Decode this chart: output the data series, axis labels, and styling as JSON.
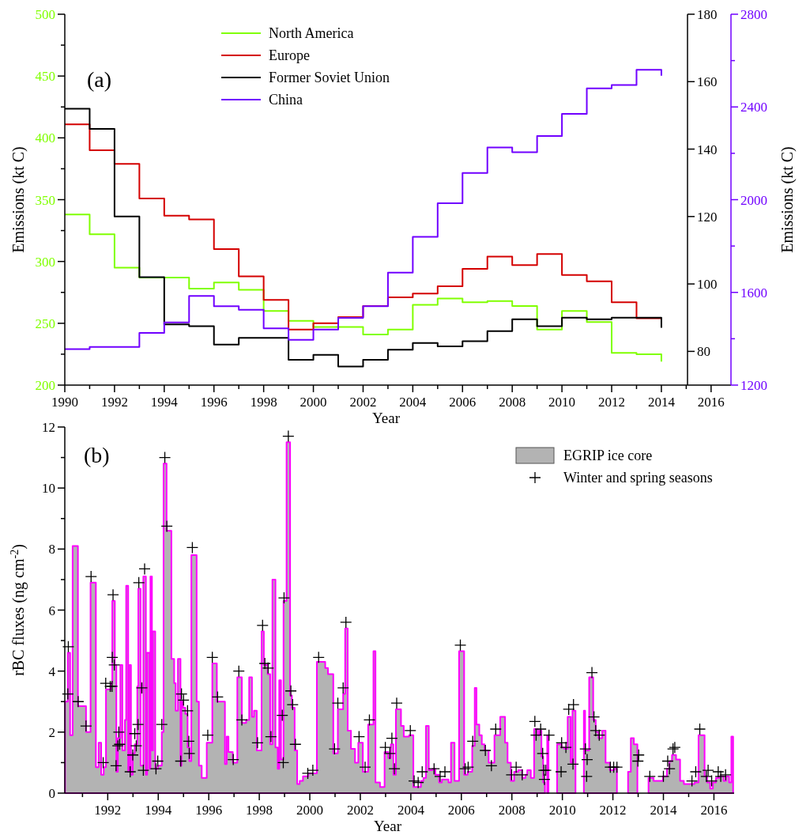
{
  "chart_data": [
    {
      "type": "step",
      "annotations": [
        "(a)"
      ],
      "xlabel": "Year",
      "ylabel": "Emissions (kt C)",
      "y2label": "Emissions (kt C)",
      "legend": "top left",
      "xlim": [
        1990,
        2016.8
      ],
      "xticks": [
        1990,
        {
          "value": 1991,
          "label": null
        },
        1992,
        {
          "value": 1993,
          "label": null
        },
        1994,
        {
          "value": 1995,
          "label": null
        },
        1996,
        {
          "value": 1997,
          "label": null
        },
        1998,
        {
          "value": 1999,
          "label": null
        },
        2000,
        {
          "value": 2001,
          "label": null
        },
        2002,
        {
          "value": 2003,
          "label": null
        },
        2004,
        {
          "value": 2005,
          "label": null
        },
        2006,
        {
          "value": 2007,
          "label": null
        },
        2008,
        {
          "value": 2009,
          "label": null
        },
        2010,
        {
          "value": 2011,
          "label": null
        },
        2012,
        {
          "value": 2013,
          "label": null
        },
        2014,
        {
          "value": 2015,
          "label": null
        },
        2016
      ],
      "ylim": [
        200,
        500
      ],
      "yticks": [
        200,
        {
          "value": 225,
          "label": null
        },
        250,
        {
          "value": 275,
          "label": null
        },
        300,
        {
          "value": 325,
          "label": null
        },
        350,
        {
          "value": 375,
          "label": null
        },
        400,
        {
          "value": 425,
          "label": null
        },
        450,
        {
          "value": 475,
          "label": null
        },
        500
      ],
      "y2lim": [
        70,
        180
      ],
      "y2ticks": [
        80,
        100,
        120,
        140,
        160,
        180
      ],
      "y3lim": [
        1200,
        2800
      ],
      "y3ticks": [
        1200,
        {
          "value": 1400,
          "label": null
        },
        1600,
        {
          "value": 1800,
          "label": null
        },
        2000,
        {
          "value": 2200,
          "label": null
        },
        2400,
        {
          "value": 2600,
          "label": null
        },
        2800
      ],
      "x": [
        1990,
        1991,
        1992,
        1993,
        1994,
        1995,
        1996,
        1997,
        1998,
        1999,
        2000,
        2001,
        2002,
        2003,
        2004,
        2005,
        2006,
        2007,
        2008,
        2009,
        2010,
        2011,
        2012,
        2013,
        2014
      ],
      "series": [
        {
          "name": "North America",
          "color": "#80ff00",
          "values": [
            338,
            322,
            295,
            287,
            287,
            278,
            283,
            277,
            260,
            252,
            247,
            247,
            241,
            245,
            265,
            270,
            267,
            268,
            264,
            245,
            260,
            251,
            226,
            225,
            219
          ]
        },
        {
          "name": "Europe",
          "color": "#d40000",
          "values": [
            411,
            390,
            379,
            351,
            337,
            334,
            310,
            288,
            269,
            245,
            250,
            255,
            264,
            271,
            274,
            280,
            294,
            304,
            297,
            306,
            289,
            284,
            267,
            254,
            254
          ]
        },
        {
          "name": "Former Soviet Union",
          "color": "#000000",
          "axis": "y2",
          "values": [
            152,
            146,
            120,
            102,
            88,
            87.5,
            82,
            84,
            84,
            77.5,
            79,
            75.5,
            77.5,
            80.5,
            82.5,
            81.5,
            83,
            86,
            89.5,
            87.5,
            90,
            89.5,
            90,
            90,
            87
          ]
        },
        {
          "name": "China",
          "color": "#7000ff",
          "axis": "y3",
          "values": [
            1355,
            1365,
            1365,
            1425,
            1470,
            1585,
            1540,
            1525,
            1445,
            1395,
            1440,
            1490,
            1540,
            1685,
            1840,
            1985,
            2115,
            2225,
            2205,
            2275,
            2370,
            2480,
            2495,
            2560,
            2535
          ]
        }
      ]
    },
    {
      "type": "area",
      "annotations": [
        "(b)"
      ],
      "xlabel": "Year",
      "ylabel": "rBC fluxes (ng cm$^{-2}$)",
      "legend": "top right",
      "xlim": [
        1990.3,
        2016.8
      ],
      "xticks": [
        {
          "value": 1991,
          "label": null
        },
        1992,
        {
          "value": 1993,
          "label": null
        },
        1994,
        {
          "value": 1995,
          "label": null
        },
        1996,
        {
          "value": 1997,
          "label": null
        },
        1998,
        {
          "value": 1999,
          "label": null
        },
        2000,
        {
          "value": 2001,
          "label": null
        },
        2002,
        {
          "value": 2003,
          "label": null
        },
        2004,
        {
          "value": 2005,
          "label": null
        },
        2006,
        {
          "value": 2007,
          "label": null
        },
        2008,
        {
          "value": 2009,
          "label": null
        },
        2010,
        {
          "value": 2011,
          "label": null
        },
        2012,
        {
          "value": 2013,
          "label": null
        },
        2014,
        {
          "value": 2015,
          "label": null
        },
        2016
      ],
      "ylim": [
        0,
        12
      ],
      "yticks": [
        0,
        {
          "value": 1,
          "label": null
        },
        2,
        {
          "value": 3,
          "label": null
        },
        4,
        {
          "value": 5,
          "label": null
        },
        6,
        {
          "value": 7,
          "label": null
        },
        8,
        {
          "value": 9,
          "label": null
        },
        10,
        {
          "value": 11,
          "label": null
        },
        12
      ],
      "series": [
        {
          "name": "EGRIP ice core",
          "color": "#b3b3b3",
          "x": [
            1990.31,
            1990.42,
            1990.51,
            1990.61,
            1990.82,
            1991.14,
            1991.32,
            1991.53,
            1991.64,
            1991.74,
            1991.84,
            1991.93,
            1992.13,
            1992.18,
            1992.28,
            1992.34,
            1992.4,
            1992.5,
            1992.58,
            1992.68,
            1992.73,
            1992.81,
            1992.85,
            1992.92,
            1992.99,
            1993.07,
            1993.17,
            1993.21,
            1993.3,
            1993.41,
            1993.51,
            1993.56,
            1993.65,
            1993.69,
            1993.75,
            1993.79,
            1993.88,
            1993.98,
            1994.14,
            1994.21,
            1994.33,
            1994.52,
            1994.63,
            1994.69,
            1994.78,
            1994.88,
            1994.92,
            1994.98,
            1995.07,
            1995.16,
            1995.23,
            1995.31,
            1995.52,
            1995.61,
            1995.72,
            1995.92,
            1996.14,
            1996.32,
            1996.64,
            1996.71,
            1996.78,
            1996.95,
            1997.13,
            1997.31,
            1997.48,
            1997.6,
            1997.71,
            1997.79,
            1997.9,
            1998.09,
            1998.18,
            1998.33,
            1998.43,
            1998.52,
            1998.64,
            1998.73,
            1998.79,
            1998.86,
            1998.96,
            1999.08,
            1999.22,
            1999.29,
            1999.4,
            1999.5,
            1999.6,
            1999.73,
            1999.94,
            2000.28,
            2000.61,
            2000.72,
            2000.93,
            2001.11,
            2001.32,
            2001.4,
            2001.5,
            2001.63,
            2001.79,
            2001.92,
            2002.1,
            2002.31,
            2002.52,
            2002.6,
            2002.78,
            2002.96,
            2003.11,
            2003.21,
            2003.31,
            2003.41,
            2003.61,
            2003.72,
            2003.93,
            2004.1,
            2004.4,
            2004.5,
            2004.6,
            2004.71,
            2004.86,
            2004.97,
            2005.12,
            2005.23,
            2005.49,
            2005.59,
            2005.73,
            2005.91,
            2006.11,
            2006.25,
            2006.43,
            2006.53,
            2006.6,
            2006.71,
            2006.81,
            2006.92,
            2007.08,
            2007.31,
            2007.54,
            2007.73,
            2007.83,
            2007.96,
            2008.09,
            2008.25,
            2008.41,
            2008.54,
            2008.61,
            2008.75,
            2008.88,
            2009.03,
            2009.1,
            2009.17,
            2009.24,
            2009.31,
            2009.4,
            2009.45,
            2009.79,
            2009.97,
            2010.07,
            2010.21,
            2010.33,
            2010.4,
            2010.52,
            2010.85,
            2010.9,
            2011.06,
            2011.22,
            2011.32,
            2011.43,
            2011.58,
            2011.71,
            2011.88,
            2012.05,
            2012.16,
            2012.6,
            2012.71,
            2012.83,
            2012.97,
            2013.41,
            2013.61,
            2013.98,
            2014.14,
            2014.24,
            2014.34,
            2014.5,
            2014.66,
            2014.81,
            2015.23,
            2015.39,
            2015.63,
            2015.73,
            2015.85,
            2015.96,
            2016.08,
            2016.22,
            2016.38,
            2016.48,
            2016.6,
            2016.69,
            2016.76
          ],
          "values": [
            3.0,
            4.6,
            1.9,
            8.1,
            2.85,
            2.0,
            6.9,
            0.85,
            1.65,
            0.6,
            0.85,
            3.4,
            3.6,
            6.3,
            4.2,
            0.7,
            1.8,
            4.2,
            1.4,
            2.4,
            6.8,
            0.7,
            4.2,
            0.6,
            1.3,
            1.6,
            3.5,
            6.7,
            0.9,
            7.1,
            0.6,
            4.6,
            0.8,
            7.1,
            1.4,
            5.3,
            0.8,
            0.9,
            2.0,
            10.8,
            8.6,
            4.4,
            3.6,
            2.7,
            4.4,
            0.9,
            3.0,
            2.8,
            2.6,
            1.5,
            1.05,
            7.8,
            3.0,
            0.9,
            0.5,
            1.65,
            4.25,
            3.0,
            0.95,
            1.85,
            1.35,
            1.0,
            3.8,
            2.3,
            2.4,
            3.8,
            2.5,
            2.7,
            1.4,
            5.3,
            4.2,
            3.9,
            1.6,
            7.0,
            1.5,
            0.8,
            3.7,
            1.1,
            6.3,
            11.5,
            3.2,
            2.8,
            1.4,
            0.3,
            0.4,
            0.55,
            0.65,
            4.3,
            4.1,
            3.9,
            1.3,
            2.75,
            3.25,
            5.4,
            2.05,
            1.45,
            1.0,
            1.65,
            0.7,
            2.25,
            4.65,
            0.35,
            0.2,
            1.35,
            1.15,
            1.6,
            0.6,
            2.75,
            2.2,
            1.85,
            1.9,
            0.2,
            0.4,
            0.5,
            2.2,
            0.75,
            0.8,
            0.6,
            0.35,
            0.45,
            0.35,
            1.65,
            0.4,
            4.65,
            0.6,
            0.7,
            1.55,
            3.45,
            2.25,
            1.9,
            1.6,
            1.4,
            1.0,
            1.9,
            2.5,
            1.65,
            1.0,
            0.4,
            0.7,
            0.75,
            0.5,
            0.6,
            0.75,
            0.5,
            2.1,
            1.9,
            2.05,
            1.2,
            0.35,
            null,
            1.9,
            null,
            1.6,
            1.5,
            1.45,
            2.5,
            1.0,
            2.7,
            null,
            2.7,
            1.4,
            3.8,
            2.4,
            2.0,
            1.8,
            2.05,
            1.0,
            0.75,
            0.8,
            null,
            0.7,
            1.8,
            1.6,
            null,
            0.5,
            0.4,
            0.55,
            0.8,
            1.05,
            1.25,
            1.1,
            0.4,
            0.3,
            0.35,
            1.9,
            0.55,
            0.35,
            0.15,
            0.35,
            0.5,
            0.55,
            0.4,
            0.55,
            0.35,
            1.85,
            1.85
          ]
        },
        {
          "name": "Winter and spring seasons",
          "type": "scatter",
          "marker": "cross",
          "color": "#000000",
          "x": [
            1990.44,
            1990.42,
            1990.83,
            1991.14,
            1991.34,
            1991.82,
            1991.92,
            1992.1,
            1992.21,
            1992.18,
            1992.26,
            1992.17,
            1992.33,
            1992.44,
            1992.4,
            1992.47,
            1992.89,
            1992.99,
            1993.07,
            1993.13,
            1993.2,
            1993.23,
            1993.35,
            1993.41,
            1993.46,
            1993.91,
            1993.98,
            1994.14,
            1994.26,
            1994.34,
            1994.89,
            1994.92,
            1995.0,
            1995.16,
            1995.21,
            1995.23,
            1995.35,
            1995.96,
            1996.14,
            1996.35,
            1996.97,
            1997.19,
            1997.31,
            1997.93,
            1998.13,
            1998.22,
            1998.35,
            1998.46,
            1998.95,
            1998.98,
            1998.91,
            1999.15,
            1999.25,
            1999.32,
            1999.43,
            1999.92,
            2000.12,
            2000.35,
            2000.98,
            2001.11,
            2001.32,
            2001.43,
            2001.95,
            2002.19,
            2002.36,
            2002.99,
            2003.17,
            2003.25,
            2003.35,
            2003.44,
            2003.98,
            2004.13,
            2004.29,
            2004.45,
            2004.92,
            2005.16,
            2005.35,
            2005.96,
            2006.15,
            2006.27,
            2006.45,
            2006.95,
            2007.19,
            2007.36,
            2007.99,
            2008.17,
            2008.41,
            2008.91,
            2008.96,
            2009.14,
            2009.22,
            2009.27,
            2009.34,
            2009.29,
            2009.47,
            2009.95,
            2009.97,
            2010.14,
            2010.25,
            2010.42,
            2010.44,
            2010.91,
            2010.98,
            2010.96,
            2011.17,
            2011.25,
            2011.32,
            2011.46,
            2011.9,
            2012.03,
            2012.16,
            2013.02,
            2012.99,
            2013.46,
            2014.0,
            2014.17,
            2014.24,
            2014.38,
            2014.45,
            2015.13,
            2015.28,
            2015.44,
            2015.7,
            2015.77,
            2015.91,
            2016.17,
            2016.27,
            2016.46
          ],
          "values": [
            4.8,
            3.25,
            3.0,
            2.2,
            7.1,
            1.0,
            3.6,
            3.5,
            6.5,
            4.45,
            4.2,
            3.5,
            0.9,
            2.0,
            1.55,
            1.6,
            0.7,
            1.25,
            1.95,
            1.55,
            2.25,
            6.9,
            3.45,
            0.75,
            7.35,
            0.8,
            1.05,
            2.25,
            11.0,
            8.75,
            1.05,
            3.25,
            3.05,
            2.7,
            1.7,
            1.3,
            8.05,
            1.9,
            4.45,
            3.15,
            1.1,
            4.0,
            2.4,
            1.65,
            5.5,
            4.25,
            4.1,
            1.85,
            1.0,
            6.4,
            2.55,
            11.7,
            3.35,
            2.9,
            1.6,
            0.65,
            0.75,
            4.45,
            1.45,
            2.95,
            3.45,
            5.6,
            1.85,
            0.85,
            2.4,
            1.5,
            1.3,
            1.8,
            0.8,
            2.95,
            2.05,
            0.4,
            0.35,
            0.7,
            0.8,
            0.55,
            0.7,
            4.85,
            0.8,
            0.85,
            1.7,
            1.4,
            0.9,
            2.1,
            0.6,
            0.85,
            0.6,
            2.35,
            1.9,
            2.1,
            1.3,
            0.75,
            0.75,
            0.45,
            1.9,
            0.7,
            1.65,
            1.5,
            2.75,
            0.95,
            2.9,
            1.45,
            1.1,
            0.55,
            3.95,
            2.5,
            2.05,
            1.9,
            0.85,
            0.85,
            0.85,
            1.25,
            1.05,
            0.55,
            0.55,
            1.05,
            0.8,
            1.45,
            1.5,
            0.4,
            0.7,
            2.1,
            0.55,
            0.75,
            0.4,
            0.7,
            0.55,
            0.6
          ]
        }
      ]
    }
  ]
}
